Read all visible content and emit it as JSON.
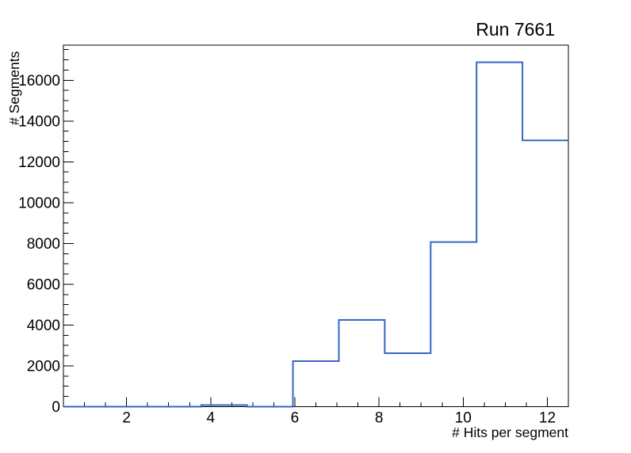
{
  "page": {
    "background_color": "#ffffff"
  },
  "header": {
    "title": "Run 7661"
  },
  "chart_data": {
    "type": "bar",
    "subtype": "step-histogram",
    "title": "Run 7661",
    "xlabel": "# Hits per segment",
    "ylabel": "# Segments",
    "xlim": [
      0.5,
      12.5
    ],
    "ylim": [
      0,
      17720
    ],
    "x_major_ticks": [
      2,
      4,
      6,
      8,
      10,
      12
    ],
    "x_minor_tick_step": 0.5,
    "y_major_ticks": [
      0,
      2000,
      4000,
      6000,
      8000,
      10000,
      12000,
      14000,
      16000
    ],
    "y_minor_tick_step": 500,
    "bin_edges": [
      0.5,
      1.5909,
      2.6818,
      3.7727,
      4.8636,
      5.9545,
      7.0455,
      8.1364,
      9.2273,
      10.3182,
      11.4091,
      12.5
    ],
    "bin_counts": [
      0,
      0,
      0,
      80,
      0,
      2230,
      4250,
      2620,
      8070,
      16880,
      13050
    ],
    "line_color": "#3766c5",
    "axis_color": "#000000",
    "grid": false,
    "legend": null
  }
}
